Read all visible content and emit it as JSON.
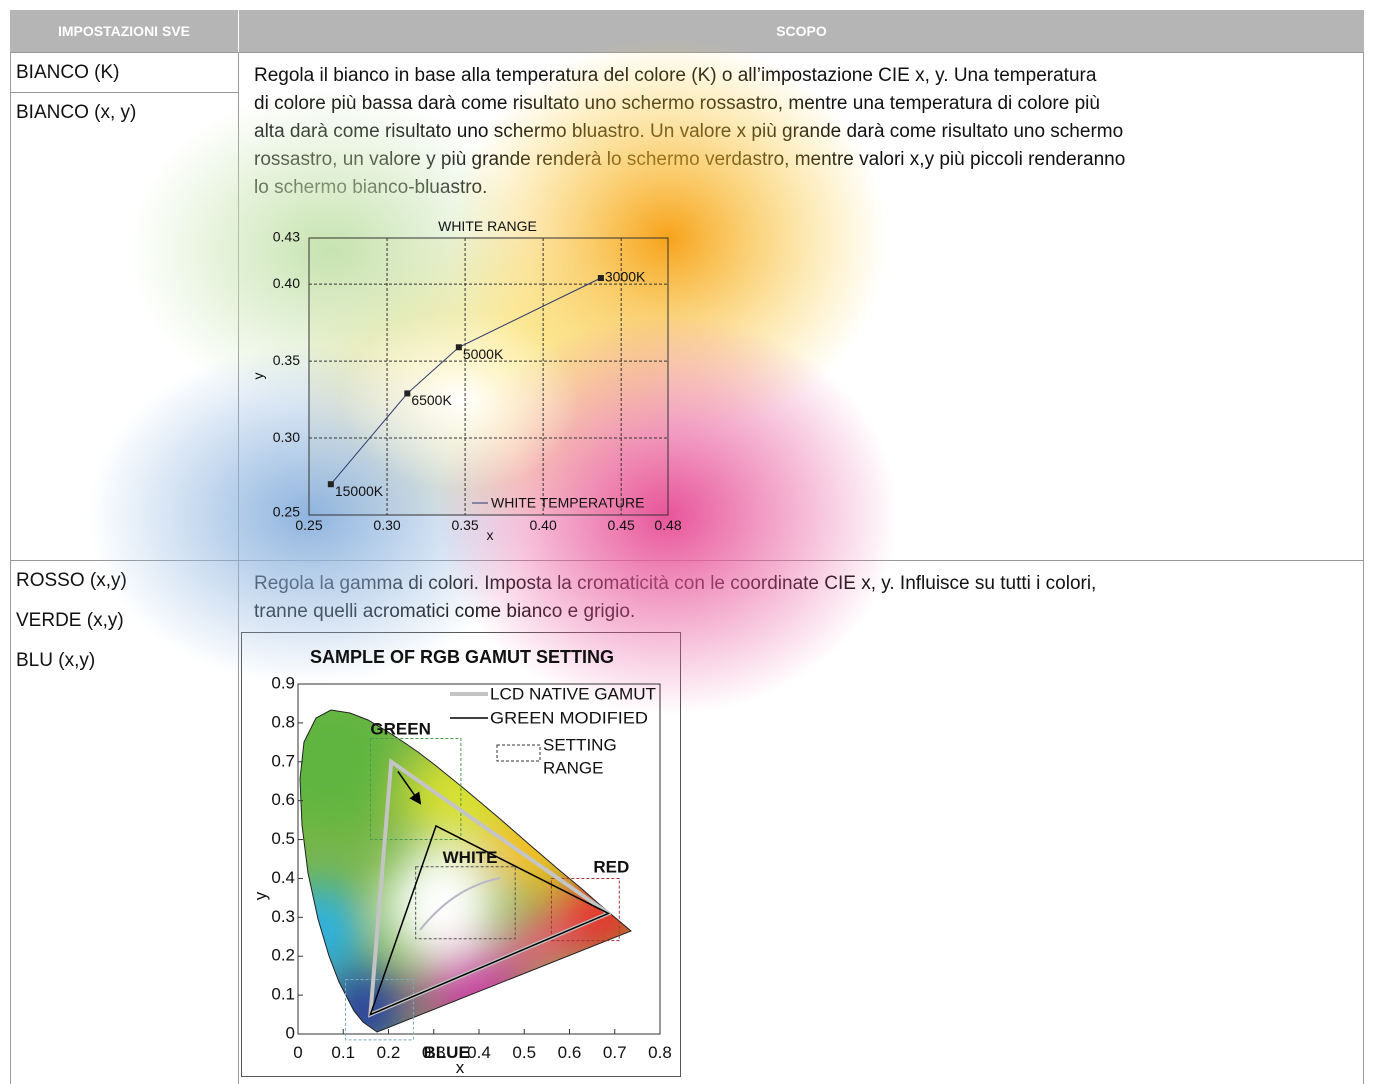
{
  "table": {
    "header": [
      "IMPOSTAZIONI SVE",
      "SCOPO"
    ],
    "rows": [
      {
        "settings": [
          "BIANCO (K)",
          "BIANCO (x, y)"
        ],
        "description": [
          "Regola il bianco in base alla temperatura del colore (K) o all’impostazione CIE x, y. Una temperatura",
          "di colore più bassa darà come risultato uno schermo rossastro, mentre una temperatura di colore più",
          "alta darà come risultato uno schermo bluastro. Un valore x più grande darà come risultato uno schermo",
          "rossastro, un valore y più grande renderà lo schermo verdastro, mentre valori x,y più piccoli renderanno",
          "lo schermo bianco-bluastro."
        ],
        "chart": {
          "type": "line",
          "title": "WHITE RANGE",
          "x_label": "x",
          "y_label": "y",
          "xlim": [
            0.25,
            0.48
          ],
          "xticks": [
            0.25,
            {
              "value": 0.3,
              "label": "0.30"
            },
            0.35,
            {
              "value": 0.4,
              "label": "0.40"
            },
            0.45,
            0.48
          ],
          "ylim": [
            0.25,
            0.43
          ],
          "yticks": [
            0.25,
            {
              "value": 0.3,
              "label": "0.30"
            },
            0.35,
            {
              "value": 0.4,
              "label": "0.40"
            },
            0.43
          ],
          "grid": true,
          "series": [
            {
              "name": "WHITE TEMPERATURE",
              "color": "#2b3a6b",
              "x": [
                0.264,
                0.313,
                0.346,
                0.437
              ],
              "values": [
                0.27,
                0.329,
                0.359,
                0.404
              ],
              "point_labels": [
                "15000K",
                "6500K",
                "5000K",
                "3000K"
              ]
            }
          ]
        }
      },
      {
        "settings": [
          "ROSSO (x,y)",
          "VERDE (x,y)",
          "BLU (x,y)"
        ],
        "description": [
          "Regola la gamma di colori. Imposta la cromaticità con le coordinate CIE x, y. Influisce su tutti i colori,",
          "tranne quelli acromatici come bianco e grigio."
        ],
        "chart": {
          "type": "gamut",
          "title": "SAMPLE OF RGB GAMUT SETTING",
          "x_label": "x",
          "y_label": "y",
          "xlim": [
            0,
            0.8
          ],
          "xticks": [
            0,
            0.1,
            0.2,
            0.3,
            0.4,
            0.5,
            0.6,
            0.7,
            0.8
          ],
          "ylim": [
            0,
            0.9
          ],
          "yticks": [
            0,
            0.1,
            0.2,
            0.3,
            0.4,
            0.5,
            0.6,
            0.7,
            0.8,
            0.9
          ],
          "series": [
            {
              "name": "LCD NATIVE GAMUT",
              "color": "#c4c4c4",
              "x": [
                0.686,
                0.206,
                0.16
              ],
              "values": [
                0.31,
                0.7,
                0.05
              ]
            },
            {
              "name": "GREEN MODIFIED",
              "color": "#000000",
              "x": [
                0.686,
                0.305,
                0.16
              ],
              "values": [
                0.31,
                0.535,
                0.05
              ]
            }
          ],
          "setting_range": {
            "name": [
              "SETTING",
              "RANGE"
            ],
            "boxes": [
              {
                "label": "GREEN",
                "color": "#4c9a4c",
                "x": [
                  0.16,
                  0.36
                ],
                "y": [
                  0.5,
                  0.76
                ]
              },
              {
                "label": "WHITE",
                "color": "#555555",
                "x": [
                  0.26,
                  0.48
                ],
                "y": [
                  0.245,
                  0.43
                ]
              },
              {
                "label": "RED",
                "color": "#a33333",
                "x": [
                  0.56,
                  0.71
                ],
                "y": [
                  0.24,
                  0.4
                ]
              },
              {
                "label": "BLUE",
                "color": "#7aaabb",
                "x": [
                  0.105,
                  0.255
                ],
                "y": [
                  -0.015,
                  0.14
                ]
              }
            ]
          }
        }
      }
    ]
  }
}
